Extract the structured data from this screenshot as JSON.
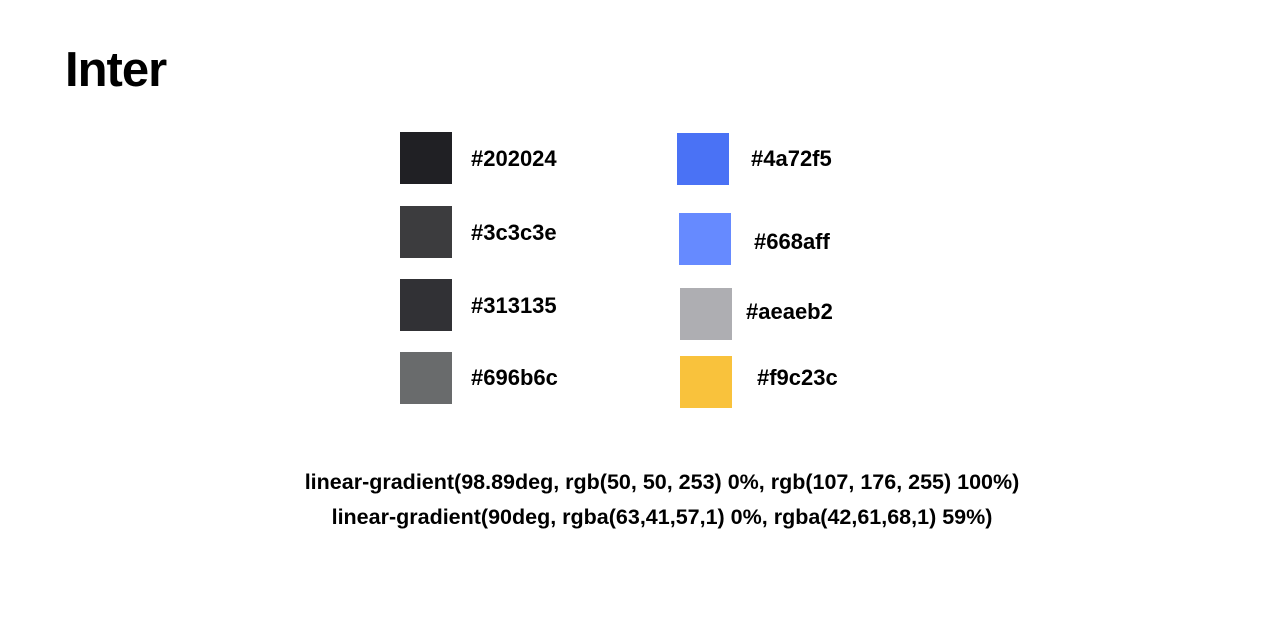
{
  "heading": "Inter",
  "colors_left": [
    {
      "hex": "#202024"
    },
    {
      "hex": "#3c3c3e"
    },
    {
      "hex": "#313135"
    },
    {
      "hex": "#696b6c"
    }
  ],
  "colors_right": [
    {
      "hex": "#4a72f5"
    },
    {
      "hex": "#668aff"
    },
    {
      "hex": "#aeaeb2"
    },
    {
      "hex": "#f9c23c"
    }
  ],
  "gradients": [
    "linear-gradient(98.89deg, rgb(50, 50, 253) 0%, rgb(107, 176, 255) 100%)",
    "linear-gradient(90deg, rgba(63,41,57,1) 0%, rgba(42,61,68,1) 59%)"
  ]
}
